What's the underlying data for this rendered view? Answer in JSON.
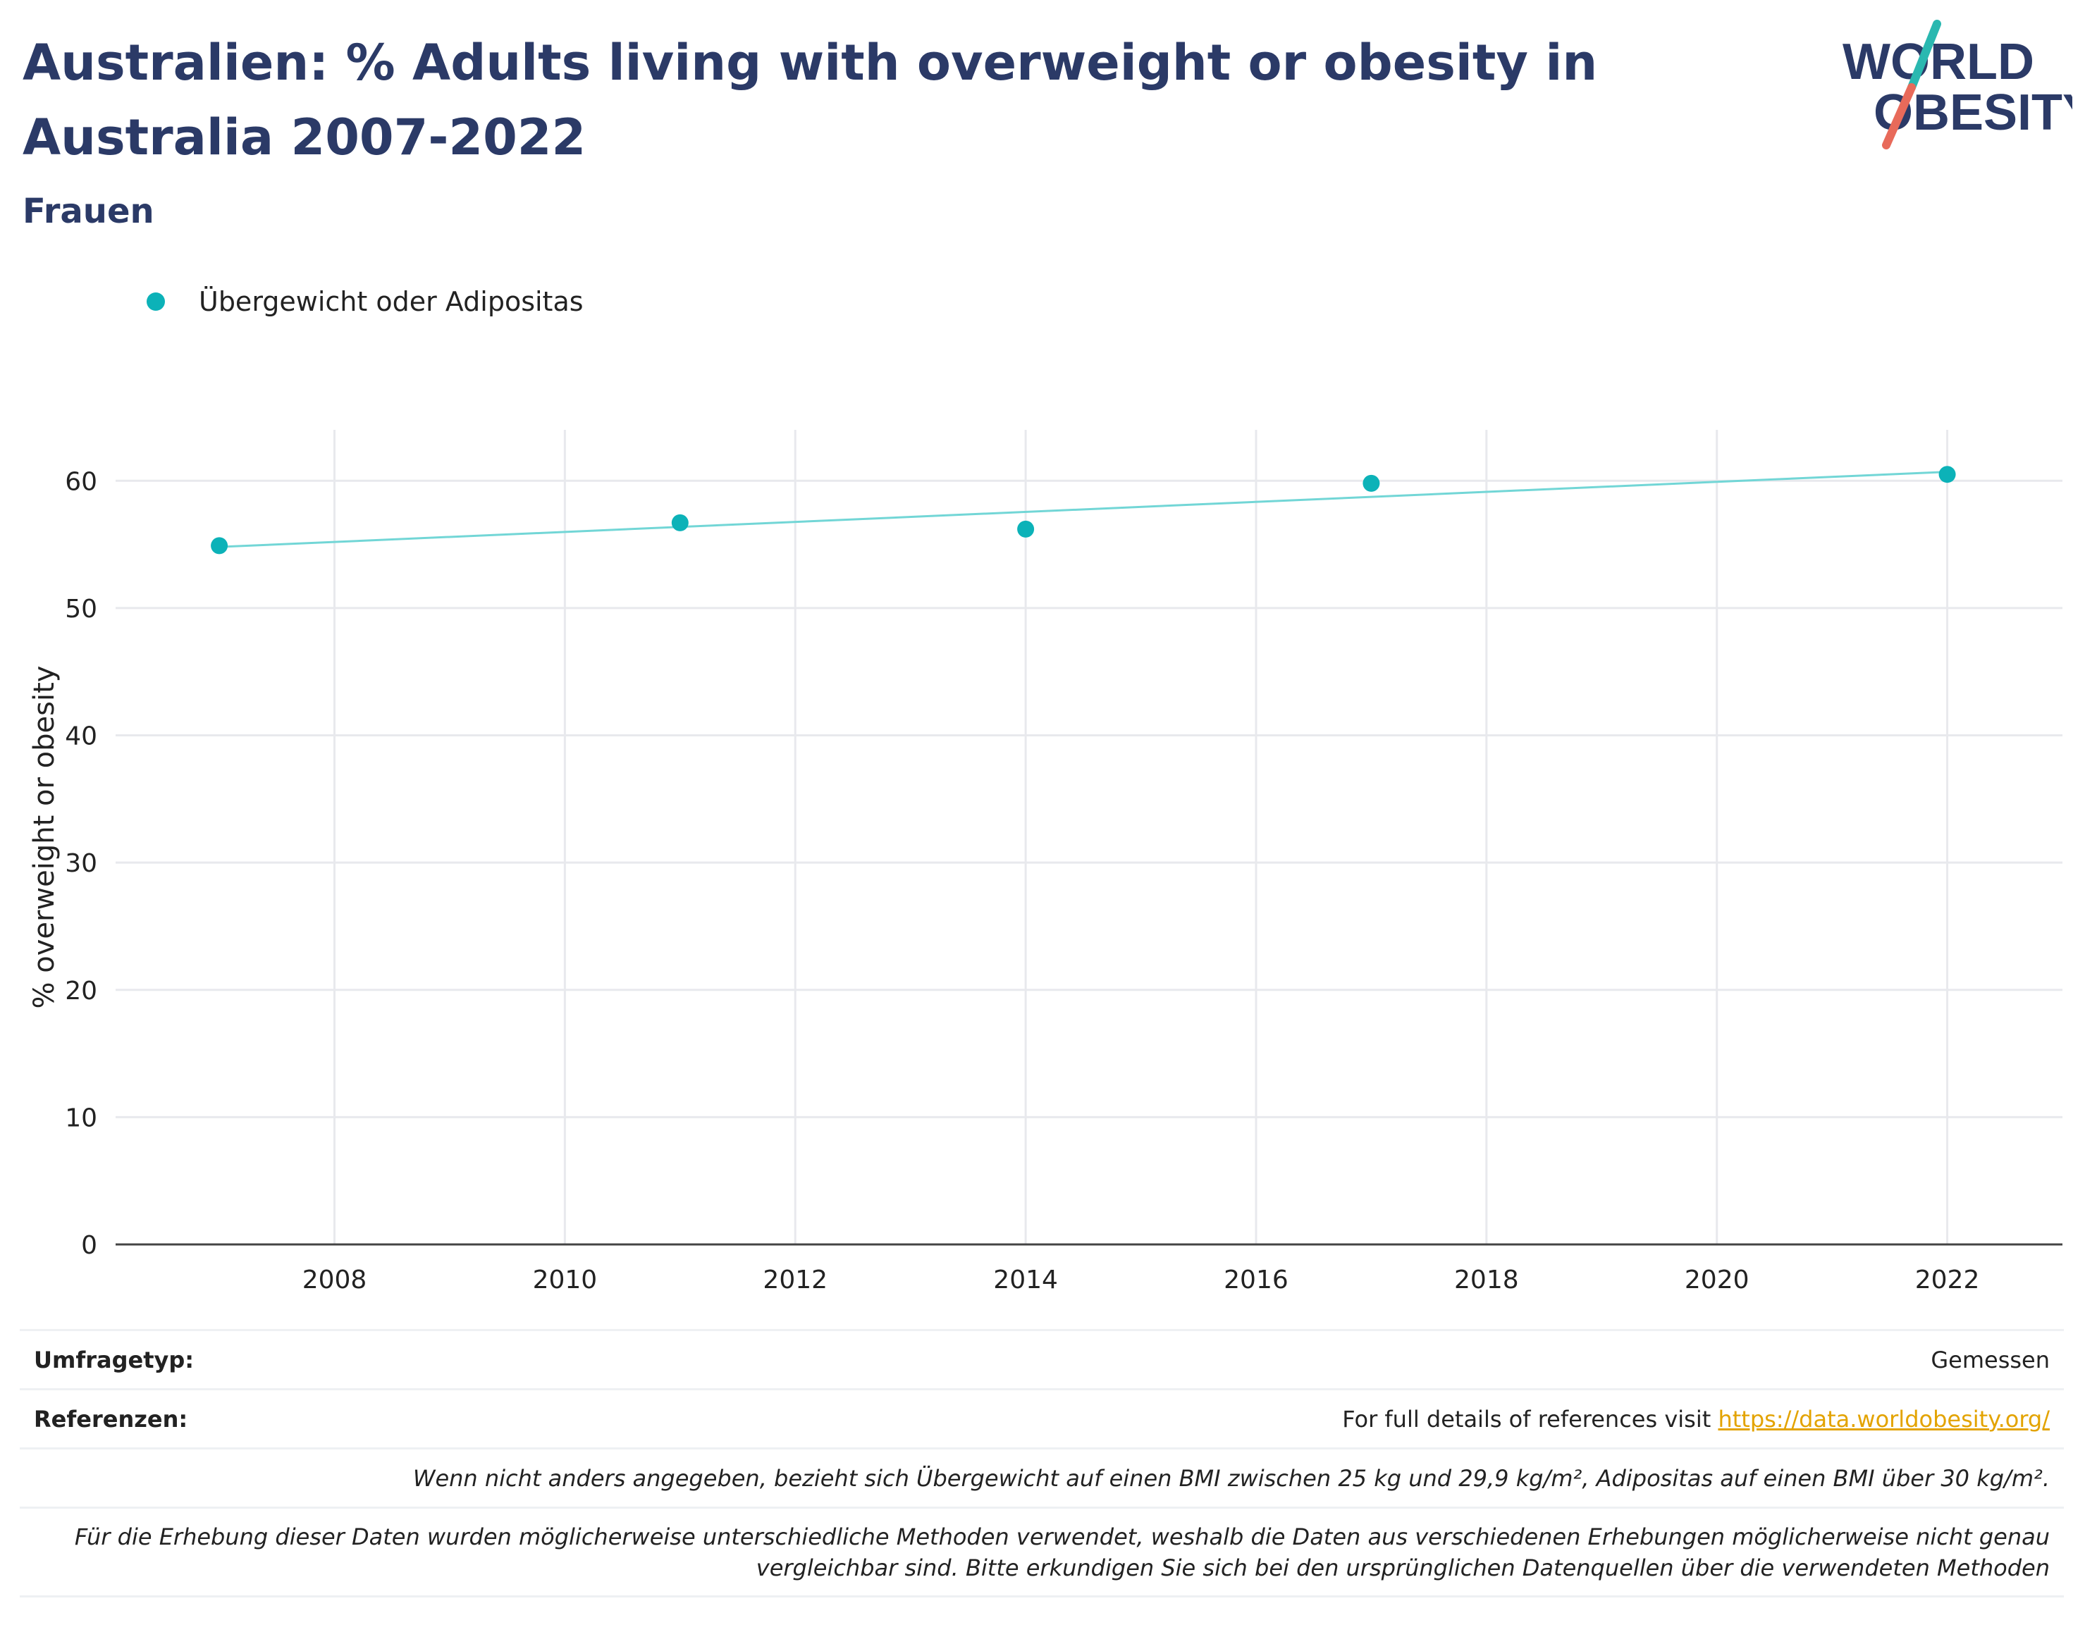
{
  "title": "Australien: % Adults living with overweight or obesity in Australia 2007-2022",
  "subtitle": "Frauen",
  "logo": {
    "line1": "WORLD",
    "line2": "OBESITY",
    "colors": {
      "text": "#2b3a67",
      "teal": "#2ab8b0",
      "red": "#e86a5a"
    }
  },
  "colors": {
    "marker": "#0cb2b8",
    "trend": "#72d6d6",
    "grid": "#e8e9ed",
    "axis": "#444444",
    "link": "#e3a300",
    "title": "#2b3a67"
  },
  "chart_data": {
    "type": "scatter",
    "title": "Australien: % Adults living with overweight or obesity in Australia 2007-2022",
    "subtitle": "Frauen",
    "xlabel": "",
    "ylabel": "% overweight or obesity",
    "xlim": [
      2006.1,
      2023
    ],
    "ylim": [
      0,
      64
    ],
    "xticks": [
      2008,
      2010,
      2012,
      2014,
      2016,
      2018,
      2020,
      2022
    ],
    "yticks": [
      0,
      10,
      20,
      30,
      40,
      50,
      60
    ],
    "grid": true,
    "legend_position": "top-left",
    "series": [
      {
        "name": "Übergewicht oder Adipositas",
        "x": [
          2007,
          2011,
          2014,
          2017,
          2022
        ],
        "y": [
          54.9,
          56.7,
          56.2,
          59.8,
          60.5
        ]
      }
    ],
    "trendline": {
      "x": [
        2007,
        2022
      ],
      "y": [
        54.8,
        60.7
      ]
    }
  },
  "notes": {
    "survey_type_label": "Umfragetyp:",
    "survey_type_value": "Gemessen",
    "references_label": "Referenzen:",
    "references_text": "For full details of references visit ",
    "references_link": "https://data.worldobesity.org/",
    "definition_note": "Wenn nicht anders angegeben, bezieht sich Übergewicht auf einen BMI zwischen 25 kg und 29,9 kg/m², Adipositas auf einen BMI über 30 kg/m².",
    "method_note_line1": "Für die Erhebung dieser Daten wurden möglicherweise unterschiedliche Methoden verwendet, weshalb die Daten aus verschiedenen Erhebungen möglicherweise nicht genau",
    "method_note_line2": "vergleichbar sind. Bitte erkundigen Sie sich bei den ursprünglichen Datenquellen über die verwendeten Methoden"
  }
}
